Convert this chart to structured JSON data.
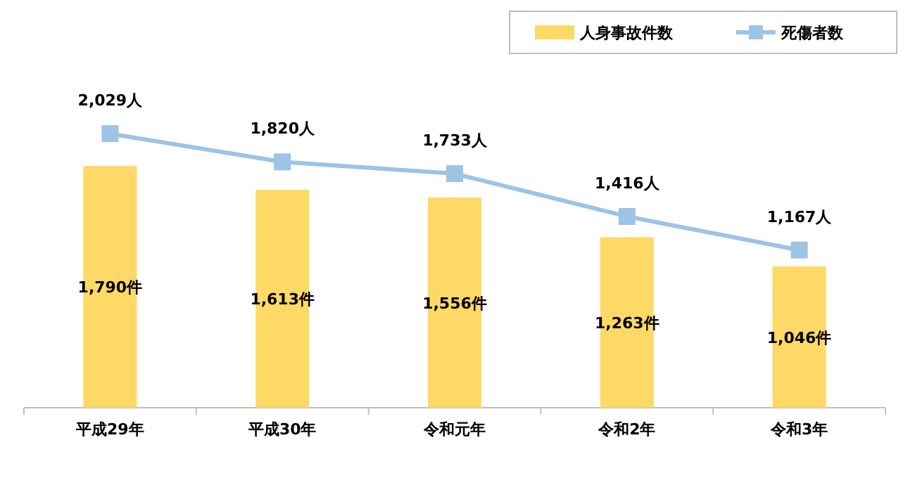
{
  "chart_data": {
    "type": "bar",
    "categories": [
      "平成29年",
      "平成30年",
      "令和元年",
      "令和2年",
      "令和3年"
    ],
    "series": [
      {
        "name": "人身事故件数",
        "color": "#ffd966",
        "values": [
          1790,
          1613,
          1556,
          1263,
          1046
        ],
        "value_labels": [
          "1,790件",
          "1,613件",
          "1,556件",
          "1,263件",
          "1,046件"
        ]
      },
      {
        "name": "死傷者数",
        "type": "line",
        "color": "#9dc3e6",
        "values": [
          2029,
          1820,
          1733,
          1416,
          1167
        ],
        "value_labels": [
          "2,029人",
          "1,820人",
          "1,733人",
          "1,416人",
          "1,167人"
        ]
      }
    ],
    "marker": "square",
    "legend": "top right"
  }
}
